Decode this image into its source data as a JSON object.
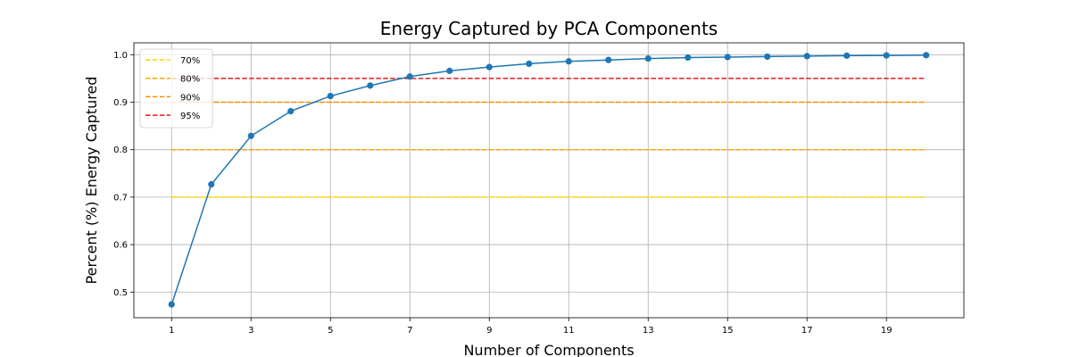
{
  "chart_data": {
    "type": "line",
    "title": "Energy Captured by PCA Components",
    "xlabel": "Number of Components",
    "ylabel": "Percent (%) Energy Captured",
    "xlim": [
      0.05,
      20.95
    ],
    "ylim": [
      0.446,
      1.025
    ],
    "xticks": [
      1,
      3,
      5,
      7,
      9,
      11,
      13,
      15,
      17,
      19
    ],
    "yticks": [
      0.5,
      0.6,
      0.7,
      0.8,
      0.9,
      1.0
    ],
    "ytick_labels": [
      "0.5",
      "0.6",
      "0.7",
      "0.8",
      "0.9",
      "1.0"
    ],
    "grid": true,
    "legend_position": "upper-left",
    "series": [
      {
        "color": "#1f77b4",
        "x": [
          1,
          2,
          3,
          4,
          5,
          6,
          7,
          8,
          9,
          10,
          11,
          12,
          13,
          14,
          15,
          16,
          17,
          18,
          19,
          20
        ],
        "values": [
          0.474,
          0.727,
          0.829,
          0.881,
          0.913,
          0.935,
          0.954,
          0.966,
          0.974,
          0.981,
          0.986,
          0.989,
          0.992,
          0.994,
          0.995,
          0.996,
          0.997,
          0.998,
          0.9985,
          0.999
        ]
      }
    ],
    "thresholds": [
      {
        "name": "70%",
        "value": 0.7,
        "color": "#ffd700",
        "x_range": [
          1,
          20
        ]
      },
      {
        "name": "80%",
        "value": 0.8,
        "color": "#ffa500",
        "x_range": [
          1,
          20
        ]
      },
      {
        "name": "90%",
        "value": 0.9,
        "color": "#ff8c00",
        "x_range": [
          1,
          20
        ]
      },
      {
        "name": "95%",
        "value": 0.95,
        "color": "#e31a1c",
        "x_range": [
          1,
          20
        ]
      }
    ]
  }
}
